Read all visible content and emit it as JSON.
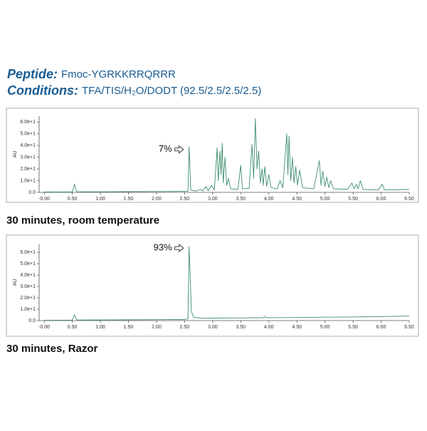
{
  "header": {
    "peptide_label": "Peptide:",
    "peptide": "Fmoc-YGRKKRRQRRR",
    "conditions_label": "Conditions:",
    "conditions": "TFA/TIS/H₂O/DODT (92.5/2.5/2.5/2.5)"
  },
  "chart_data": [
    {
      "type": "line",
      "caption": "30 minutes, room temperature",
      "ylabel": "AU",
      "annotation": "7%",
      "color": "#3f8f6e",
      "x": [
        0.0,
        0.5,
        0.54,
        0.58,
        1.0,
        1.5,
        2.0,
        2.5,
        2.56,
        2.58,
        2.61,
        2.7,
        2.78,
        2.82,
        2.88,
        2.92,
        2.98,
        3.03,
        3.08,
        3.1,
        3.13,
        3.15,
        3.17,
        3.19,
        3.22,
        3.25,
        3.28,
        3.32,
        3.45,
        3.5,
        3.53,
        3.65,
        3.7,
        3.73,
        3.76,
        3.79,
        3.82,
        3.85,
        3.88,
        3.9,
        3.93,
        3.96,
        4.0,
        4.04,
        4.15,
        4.2,
        4.25,
        4.32,
        4.34,
        4.36,
        4.39,
        4.42,
        4.45,
        4.48,
        4.51,
        4.55,
        4.6,
        4.8,
        4.9,
        4.93,
        4.96,
        5.0,
        5.03,
        5.07,
        5.1,
        5.15,
        5.4,
        5.48,
        5.52,
        5.56,
        5.59,
        5.63,
        5.68,
        5.95,
        6.02,
        6.06,
        6.5
      ],
      "values": [
        0.3,
        0.4,
        7.0,
        0.5,
        0.5,
        0.6,
        0.7,
        0.9,
        1.0,
        39.0,
        2.0,
        1.2,
        2.5,
        1.2,
        5.0,
        1.5,
        6.0,
        2.0,
        38.0,
        10.0,
        35.0,
        15.0,
        42.0,
        8.0,
        30.0,
        6.0,
        12.0,
        3.0,
        2.5,
        23.0,
        3.0,
        3.5,
        41.0,
        12.0,
        63.0,
        20.0,
        35.0,
        8.0,
        20.0,
        6.0,
        22.0,
        5.0,
        15.0,
        4.0,
        3.0,
        10.0,
        4.0,
        50.0,
        15.0,
        48.0,
        10.0,
        30.0,
        8.0,
        22.0,
        6.0,
        19.0,
        4.0,
        3.0,
        27.0,
        6.0,
        18.0,
        5.0,
        13.0,
        4.0,
        10.0,
        3.0,
        2.5,
        8.0,
        3.0,
        7.0,
        3.0,
        10.0,
        2.5,
        2.0,
        7.0,
        2.0,
        2.5
      ],
      "xlim": [
        -0.09,
        6.5
      ],
      "ylim": [
        0,
        65
      ],
      "xticks": [
        {
          "value": 0,
          "label": "-0.00"
        },
        {
          "value": 0.5,
          "label": "0.50"
        },
        {
          "value": 1,
          "label": "1.00"
        },
        {
          "value": 1.5,
          "label": "1.50"
        },
        {
          "value": 2,
          "label": "2.00"
        },
        {
          "value": 2.5,
          "label": "2.50"
        },
        {
          "value": 3,
          "label": "3.00"
        },
        {
          "value": 3.5,
          "label": "3.50"
        },
        {
          "value": 4,
          "label": "4.00"
        },
        {
          "value": 4.5,
          "label": "4.50"
        },
        {
          "value": 5,
          "label": "5.00"
        },
        {
          "value": 5.5,
          "label": "5.50"
        },
        {
          "value": 6,
          "label": "6.00"
        },
        {
          "value": 6.5,
          "label": "6.50"
        }
      ],
      "yticks": [
        {
          "value": 0,
          "label": "0.0"
        },
        {
          "value": 10,
          "label": "1.0e+1"
        },
        {
          "value": 20,
          "label": "2.0e+1"
        },
        {
          "value": 30,
          "label": "3.0e+1"
        },
        {
          "value": 40,
          "label": "4.0e+1"
        },
        {
          "value": 50,
          "label": "5.0e+1"
        },
        {
          "value": 60,
          "label": "6.0e+1"
        }
      ]
    },
    {
      "type": "line",
      "caption": "30 minutes, Razor",
      "ylabel": "AU",
      "annotation": "93%",
      "color": "#3f8f6e",
      "x": [
        0.0,
        0.5,
        0.54,
        0.58,
        1.0,
        1.5,
        2.0,
        2.5,
        2.56,
        2.58,
        2.6,
        2.62,
        2.66,
        2.8,
        3.0,
        3.5,
        3.9,
        3.92,
        3.95,
        4.5,
        5.0,
        5.5,
        6.0,
        6.5
      ],
      "values": [
        0.3,
        0.4,
        5.0,
        0.5,
        0.6,
        0.7,
        0.8,
        1.0,
        1.5,
        65.0,
        40.0,
        8.0,
        3.0,
        2.0,
        2.2,
        2.3,
        2.5,
        3.5,
        2.5,
        2.7,
        3.0,
        3.2,
        3.5,
        4.0
      ],
      "xlim": [
        -0.09,
        6.5
      ],
      "ylim": [
        0,
        67
      ],
      "xticks": [
        {
          "value": 0,
          "label": "-0.00"
        },
        {
          "value": 0.5,
          "label": "0.50"
        },
        {
          "value": 1,
          "label": "1.00"
        },
        {
          "value": 1.5,
          "label": "1.50"
        },
        {
          "value": 2,
          "label": "2.00"
        },
        {
          "value": 2.5,
          "label": "2.50"
        },
        {
          "value": 3,
          "label": "3.00"
        },
        {
          "value": 3.5,
          "label": "3.50"
        },
        {
          "value": 4,
          "label": "4.00"
        },
        {
          "value": 4.5,
          "label": "4.50"
        },
        {
          "value": 5,
          "label": "5.00"
        },
        {
          "value": 5.5,
          "label": "5.50"
        },
        {
          "value": 6,
          "label": "6.00"
        },
        {
          "value": 6.5,
          "label": "6.50"
        }
      ],
      "yticks": [
        {
          "value": 0,
          "label": "0.0"
        },
        {
          "value": 10,
          "label": "1.0e+1"
        },
        {
          "value": 20,
          "label": "2.0e+1"
        },
        {
          "value": 30,
          "label": "3.0e+1"
        },
        {
          "value": 40,
          "label": "4.0e+1"
        },
        {
          "value": 50,
          "label": "5.0e+1"
        },
        {
          "value": 60,
          "label": "6.0e+1"
        }
      ]
    }
  ]
}
